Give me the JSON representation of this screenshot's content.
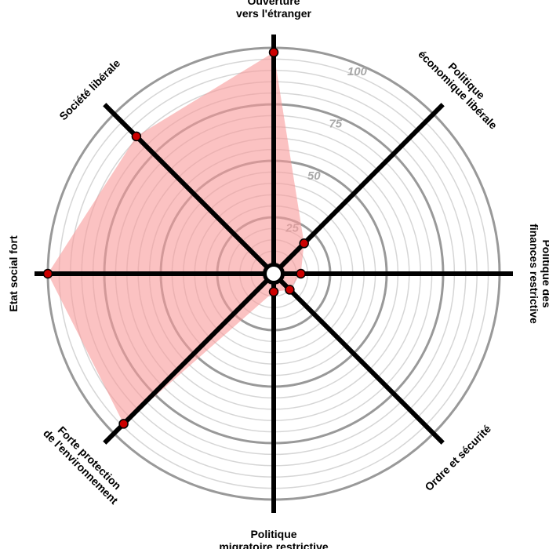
{
  "chart_data": {
    "type": "radar",
    "title": "",
    "rmax": 100,
    "ticks": [
      25,
      50,
      75,
      100
    ],
    "tick_labels": [
      "25",
      "50",
      "75",
      "100"
    ],
    "axes": [
      {
        "label_lines": [
          "Ouverture",
          "vers l'étranger"
        ]
      },
      {
        "label_lines": [
          "Politique",
          "économique libérale"
        ]
      },
      {
        "label_lines": [
          "Politique des",
          "finances restrictive"
        ]
      },
      {
        "label_lines": [
          "Ordre et sécurité"
        ]
      },
      {
        "label_lines": [
          "Politique",
          "migratoire restrictive"
        ]
      },
      {
        "label_lines": [
          "Forte protection",
          "de l'environnement"
        ]
      },
      {
        "label_lines": [
          "Etat social fort"
        ]
      },
      {
        "label_lines": [
          "Société libérale"
        ]
      }
    ],
    "series": [
      {
        "values": [
          98,
          19,
          12,
          10,
          8,
          94,
          100,
          86
        ]
      }
    ],
    "colors": {
      "fill": "#f89a9a",
      "point": "#cc0000",
      "axis": "#000000",
      "grid_major": "#999999",
      "grid_minor": "#d6d6d6",
      "tick_text": "#a8a8a8"
    }
  }
}
